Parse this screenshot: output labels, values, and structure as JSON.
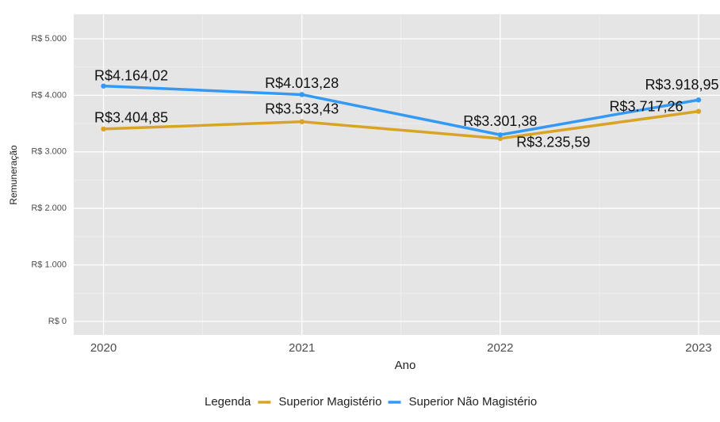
{
  "chart_data": {
    "type": "line",
    "x_label": "Ano",
    "y_label": "Remuneração",
    "x": [
      2020,
      2021,
      2022,
      2023
    ],
    "xlim": [
      2019.85,
      2023.15
    ],
    "xticks": [
      2020,
      2021,
      2022,
      2023
    ],
    "ylim": [
      -238,
      5434
    ],
    "yticks": [
      {
        "value": 0,
        "label": "R$ 0"
      },
      {
        "value": 1000,
        "label": "R$ 1.000"
      },
      {
        "value": 2000,
        "label": "R$ 2.000"
      },
      {
        "value": 3000,
        "label": "R$ 3.000"
      },
      {
        "value": 4000,
        "label": "R$ 4.000"
      },
      {
        "value": 5000,
        "label": "R$ 5.000"
      }
    ],
    "grid": true,
    "legend_title": "Legenda",
    "legend_position": "bottom",
    "series": [
      {
        "name": "Superior Magistério",
        "color": "#D9A426",
        "values": [
          3404.85,
          3533.43,
          3235.59,
          3717.26
        ],
        "value_labels": [
          "R$3.404,85",
          "R$3.533,43",
          "R$3.235,59",
          "R$3.717,26"
        ]
      },
      {
        "name": "Superior Não Magistério",
        "color": "#3399F5",
        "values": [
          4164.02,
          4013.28,
          3301.38,
          3918.95
        ],
        "value_labels": [
          "R$4.164,02",
          "R$4.013,28",
          "R$3.301,38",
          "R$3.918,95"
        ]
      }
    ]
  }
}
